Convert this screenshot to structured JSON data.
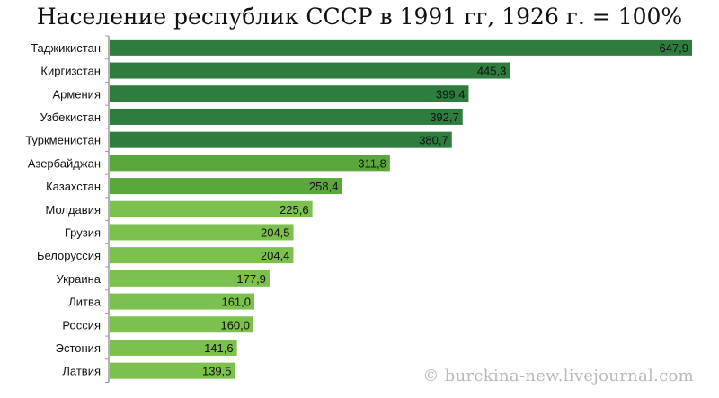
{
  "chart_data": {
    "type": "bar",
    "orientation": "horizontal",
    "title": "Население республик СССР в 1991 гг, 1926 г. = 100%",
    "xlabel": "",
    "ylabel": "",
    "categories": [
      "Таджикистан",
      "Киргизстан",
      "Армения",
      "Узбекистан",
      "Туркменистан",
      "Азербайджан",
      "Казахстан",
      "Молдавия",
      "Грузия",
      "Белоруссия",
      "Украина",
      "Литва",
      "Россия",
      "Эстония",
      "Латвия"
    ],
    "values": [
      647.9,
      445.3,
      399.4,
      392.7,
      380.7,
      311.8,
      258.4,
      225.6,
      204.5,
      204.4,
      177.9,
      161.0,
      160.0,
      141.6,
      139.5
    ],
    "value_labels": [
      "647,9",
      "445,3",
      "399,4",
      "392,7",
      "380,7",
      "311,8",
      "258,4",
      "225,6",
      "204,5",
      "204,4",
      "177,9",
      "161,0",
      "160,0",
      "141,6",
      "139,5"
    ],
    "xlim": [
      0,
      660
    ],
    "grid": false,
    "legend": "none",
    "colors": {
      "dark": "#2e7d3e",
      "medium": "#5aa83c",
      "light": "#7cc04e",
      "axis": "#9a9a9a"
    },
    "color_groups": [
      "dark",
      "dark",
      "dark",
      "dark",
      "dark",
      "medium",
      "medium",
      "light",
      "light",
      "light",
      "light",
      "light",
      "light",
      "light",
      "light"
    ]
  },
  "watermark": "© burckina-new.livejournal.com"
}
